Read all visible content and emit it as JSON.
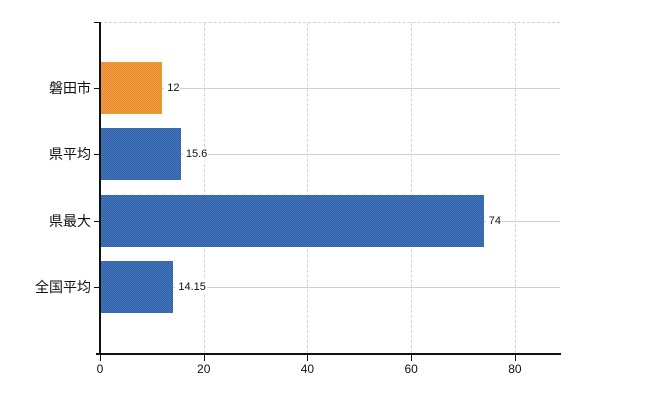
{
  "chart_data": {
    "type": "bar",
    "orientation": "horizontal",
    "title": "",
    "xlabel": "",
    "ylabel": "",
    "categories": [
      "磐田市",
      "県平均",
      "県最大",
      "全国平均"
    ],
    "values": [
      12,
      15.6,
      74,
      14.15
    ],
    "value_labels": [
      "12",
      "15.6",
      "74",
      "14.15"
    ],
    "xticks": [
      0,
      20,
      40,
      60,
      80
    ],
    "xtick_labels": [
      "0",
      "20",
      "40",
      "60",
      "80"
    ],
    "xlim": [
      0,
      88.7
    ],
    "grid": true,
    "legend": false,
    "highlight_index": 0
  },
  "colors": {
    "highlight_bar": "#ef9336",
    "highlight_bar_dither": [
      "#f4a044",
      "#e8882c"
    ],
    "default_bar": "#3c6cb2",
    "default_bar_dither": [
      "#4677bd",
      "#2f60a6"
    ],
    "axis": "#111111",
    "h_gridline": "#cbd5ca",
    "v_gridline": "#d6d0d6",
    "background": "#ffffff",
    "text": "#111111"
  }
}
